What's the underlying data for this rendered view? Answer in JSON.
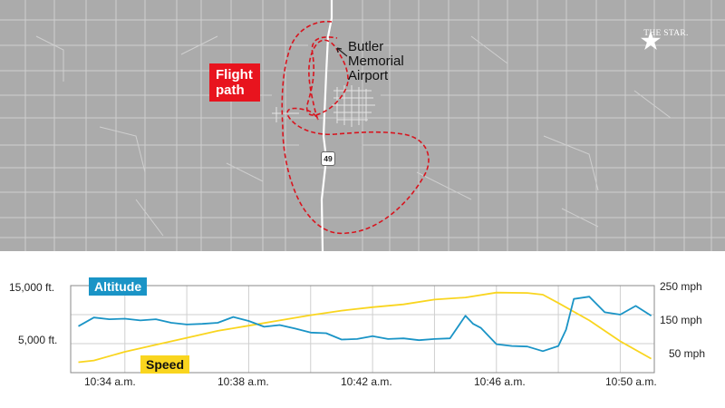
{
  "map": {
    "flight_label": [
      "Flight",
      "path"
    ],
    "airport_label": [
      "Butler",
      "Memorial",
      "Airport"
    ],
    "highway": "49",
    "brand": {
      "name": "THE STAR.",
      "icon": "star-icon"
    },
    "colors": {
      "land": "#ababab",
      "roads": "#d6d6d6",
      "flight_path": "#d8141e",
      "highway": "#ffffff"
    }
  },
  "chart_data": {
    "type": "line",
    "x_ticks": [
      "10:34 a.m.",
      "10:38 a.m.",
      "10:42 a.m.",
      "10:46 a.m.",
      "10:50 a.m."
    ],
    "y_left": {
      "ticks": [
        "15,000 ft.",
        "5,000 ft."
      ],
      "tick_values": [
        15000,
        5000
      ],
      "range": [
        0,
        15000
      ]
    },
    "y_right": {
      "ticks": [
        "250 mph",
        "150 mph",
        "50 mph"
      ],
      "tick_values": [
        250,
        150,
        50
      ],
      "range": [
        0,
        250
      ]
    },
    "series": [
      {
        "name": "Altitude",
        "axis": "left",
        "color": "#1a94c6",
        "x": [
          "10:32:30",
          "10:33:00",
          "10:33:30",
          "10:34:00",
          "10:34:30",
          "10:35:00",
          "10:35:30",
          "10:36:00",
          "10:36:30",
          "10:37:00",
          "10:37:30",
          "10:38:00",
          "10:38:30",
          "10:39:00",
          "10:39:30",
          "10:40:00",
          "10:40:30",
          "10:41:00",
          "10:41:30",
          "10:42:00",
          "10:42:30",
          "10:43:00",
          "10:43:30",
          "10:44:00",
          "10:44:30",
          "10:45:00",
          "10:45:15",
          "10:45:30",
          "10:46:00",
          "10:46:30",
          "10:47:00",
          "10:47:30",
          "10:48:00",
          "10:48:15",
          "10:48:30",
          "10:49:00",
          "10:49:30",
          "10:50:00",
          "10:50:30",
          "10:51:00"
        ],
        "y": [
          8000,
          9500,
          9200,
          9300,
          9000,
          9200,
          8600,
          8300,
          8400,
          8600,
          9600,
          8900,
          7900,
          8200,
          7600,
          6900,
          6800,
          5700,
          5800,
          6300,
          5800,
          5900,
          5600,
          5800,
          5900,
          9800,
          8400,
          7700,
          4900,
          4600,
          4500,
          3700,
          4600,
          7400,
          12700,
          13100,
          10400,
          10000,
          11500,
          9800
        ],
        "ylim": [
          0,
          15000
        ]
      },
      {
        "name": "Speed",
        "axis": "right",
        "color": "#f9d51f",
        "x": [
          "10:32:30",
          "10:33:00",
          "10:34:00",
          "10:35:00",
          "10:36:00",
          "10:37:00",
          "10:38:00",
          "10:39:00",
          "10:40:00",
          "10:41:00",
          "10:42:00",
          "10:43:00",
          "10:44:00",
          "10:45:00",
          "10:46:00",
          "10:47:00",
          "10:47:30",
          "10:48:00",
          "10:49:00",
          "10:50:00",
          "10:51:00"
        ],
        "y": [
          30,
          35,
          60,
          80,
          100,
          120,
          135,
          150,
          165,
          178,
          188,
          196,
          210,
          216,
          230,
          229,
          224,
          200,
          150,
          90,
          40
        ],
        "ylim": [
          0,
          250
        ]
      }
    ],
    "grid": true
  }
}
